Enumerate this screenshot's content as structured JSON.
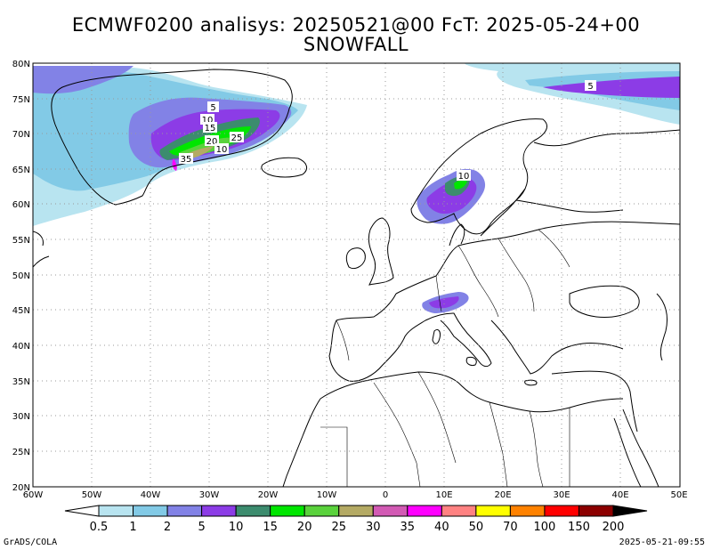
{
  "title_line1": "ECMWF0200 analisys: 20250521@00 FcT: 2025-05-24+00",
  "title_line2": "SNOWFALL",
  "lat_labels": [
    "80N",
    "75N",
    "70N",
    "65N",
    "60N",
    "55N",
    "50N",
    "45N",
    "40N",
    "35N",
    "30N",
    "25N",
    "20N"
  ],
  "lon_labels": [
    "60W",
    "50W",
    "40W",
    "30W",
    "20W",
    "10W",
    "0",
    "10E",
    "20E",
    "30E",
    "40E",
    "50E"
  ],
  "contour_labels": {
    "greenland": [
      "5",
      "10",
      "15",
      "20",
      "25",
      "10",
      "35"
    ],
    "scandinavia": [
      "10"
    ],
    "arctic": [
      "5"
    ]
  },
  "colorbar": {
    "labels": [
      "0.5",
      "1",
      "2",
      "5",
      "10",
      "15",
      "20",
      "25",
      "30",
      "35",
      "40",
      "50",
      "70",
      "100",
      "150",
      "200"
    ],
    "colors": [
      "#b8e4f0",
      "#82cae6",
      "#8282e6",
      "#8c3ce6",
      "#3c8c6e",
      "#00e600",
      "#5ad23c",
      "#b4aa64",
      "#d25ab4",
      "#ff00ff",
      "#ff8282",
      "#ffff00",
      "#ff8200",
      "#ff0000",
      "#8c0000"
    ]
  },
  "footer_left": "GrADS/COLA",
  "footer_right": "2025-05-21-09:55"
}
